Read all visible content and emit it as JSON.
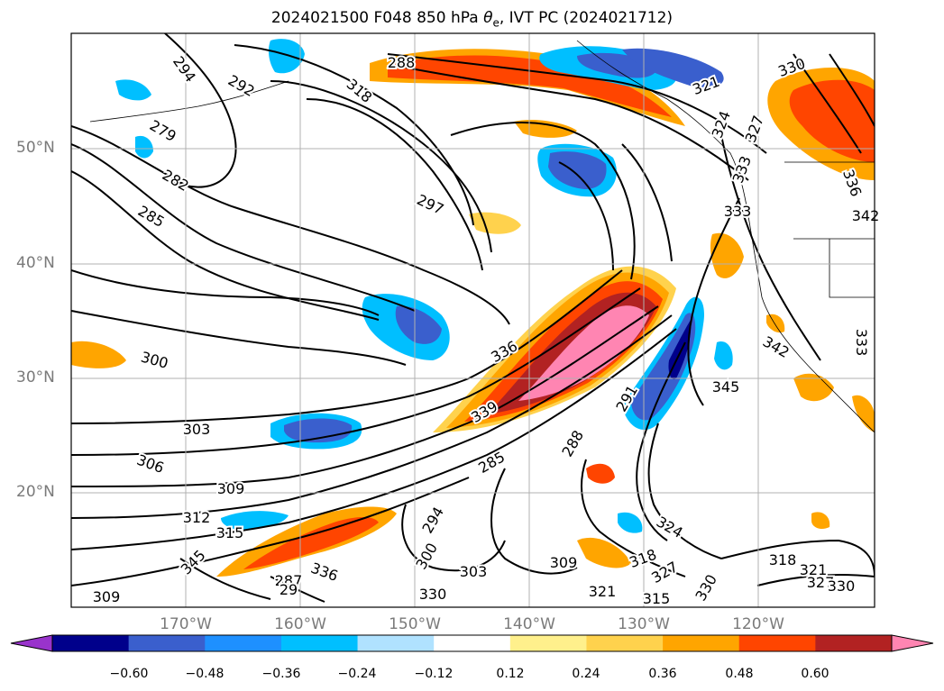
{
  "title": {
    "prefix": "2024021500 F048 850 hPa ",
    "theta": "θ",
    "theta_sub": "e",
    "suffix": ", IVT PC (2024021712)"
  },
  "axes": {
    "lat_labels": [
      "50°N",
      "40°N",
      "30°N",
      "20°N"
    ],
    "lon_labels": [
      "170°W",
      "160°W",
      "150°W",
      "140°W",
      "130°W",
      "120°W"
    ]
  },
  "colorbar": {
    "colors": [
      "#9933cc",
      "#00008b",
      "#3a5fcd",
      "#1e90ff",
      "#00bfff",
      "#b0e2ff",
      "#ffffff",
      "#fff08c",
      "#ffd24d",
      "#ffa500",
      "#ff4500",
      "#b22222",
      "#ff85b2"
    ],
    "tick_labels": [
      "−0.60",
      "−0.48",
      "−0.36",
      "−0.24",
      "−0.12",
      "0.12",
      "0.24",
      "0.36",
      "0.48",
      "0.60"
    ]
  },
  "contour_labels": [
    "288",
    "292",
    "294",
    "279",
    "282",
    "285",
    "297",
    "300",
    "303",
    "306",
    "309",
    "312",
    "315",
    "318",
    "321",
    "324",
    "327",
    "330",
    "333",
    "336",
    "339",
    "342",
    "345",
    "291",
    "288",
    "285",
    "294",
    "300",
    "303",
    "309",
    "318",
    "321",
    "324",
    "327",
    "330",
    "315",
    "318",
    "321",
    "327",
    "330",
    "333",
    "336",
    "342",
    "345",
    "309",
    "287",
    "29",
    "330",
    "336",
    "333"
  ]
}
